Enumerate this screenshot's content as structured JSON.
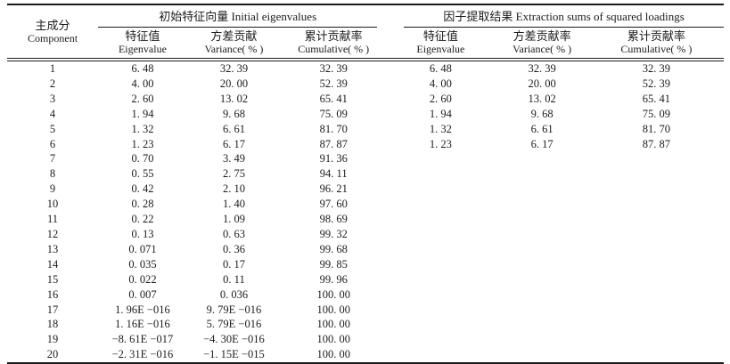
{
  "colors": {
    "background": "#ffffff",
    "text": "#1c1c1c",
    "rule": "#1b1b1b"
  },
  "table": {
    "component_header": {
      "zh": "主成分",
      "en": "Component"
    },
    "groups": [
      {
        "zh": "初始特征向量",
        "en": "Initial eigenvalues",
        "title": "初始特征向量 Initial eigenvalues",
        "columns": [
          {
            "zh": "特征值",
            "en": "Eigenvalue"
          },
          {
            "zh": "方差贡献",
            "en": "Variance( % )"
          },
          {
            "zh": "累计贡献率",
            "en": "Cumulative( % )"
          }
        ]
      },
      {
        "zh": "因子提取结果",
        "en": "Extraction sums of squared loadings",
        "title": "因子提取结果 Extraction sums of squared loadings",
        "columns": [
          {
            "zh": "特征值",
            "en": "Eigenvalue"
          },
          {
            "zh": "方差贡献率",
            "en": "Variance( % )"
          },
          {
            "zh": "累计贡献率",
            "en": "Cumulative( % )"
          }
        ]
      }
    ],
    "rows": [
      [
        "1",
        "6. 48",
        "32. 39",
        "32. 39",
        "6. 48",
        "32. 39",
        "32. 39"
      ],
      [
        "2",
        "4. 00",
        "20. 00",
        "52. 39",
        "4. 00",
        "20. 00",
        "52. 39"
      ],
      [
        "3",
        "2. 60",
        "13. 02",
        "65. 41",
        "2. 60",
        "13. 02",
        "65. 41"
      ],
      [
        "4",
        "1. 94",
        "9. 68",
        "75. 09",
        "1. 94",
        "9. 68",
        "75. 09"
      ],
      [
        "5",
        "1. 32",
        "6. 61",
        "81. 70",
        "1. 32",
        "6. 61",
        "81. 70"
      ],
      [
        "6",
        "1. 23",
        "6. 17",
        "87. 87",
        "1. 23",
        "6. 17",
        "87. 87"
      ],
      [
        "7",
        "0. 70",
        "3. 49",
        "91. 36",
        "",
        "",
        ""
      ],
      [
        "8",
        "0. 55",
        "2. 75",
        "94. 11",
        "",
        "",
        ""
      ],
      [
        "9",
        "0. 42",
        "2. 10",
        "96. 21",
        "",
        "",
        ""
      ],
      [
        "10",
        "0. 28",
        "1. 40",
        "97. 60",
        "",
        "",
        ""
      ],
      [
        "11",
        "0. 22",
        "1. 09",
        "98. 69",
        "",
        "",
        ""
      ],
      [
        "12",
        "0. 13",
        "0. 63",
        "99. 32",
        "",
        "",
        ""
      ],
      [
        "13",
        "0. 071",
        "0. 36",
        "99. 68",
        "",
        "",
        ""
      ],
      [
        "14",
        "0. 035",
        "0. 17",
        "99. 85",
        "",
        "",
        ""
      ],
      [
        "15",
        "0. 022",
        "0. 11",
        "99. 96",
        "",
        "",
        ""
      ],
      [
        "16",
        "0. 007",
        "0. 036",
        "100. 00",
        "",
        "",
        ""
      ],
      [
        "17",
        "1. 96E −016",
        "9. 79E −016",
        "100. 00",
        "",
        "",
        ""
      ],
      [
        "18",
        "1. 16E −016",
        "5. 79E −016",
        "100. 00",
        "",
        "",
        ""
      ],
      [
        "19",
        "−8. 61E −017",
        "−4. 30E −016",
        "100. 00",
        "",
        "",
        ""
      ],
      [
        "20",
        "−2. 31E −016",
        "−1. 15E −015",
        "100. 00",
        "",
        "",
        ""
      ]
    ]
  }
}
